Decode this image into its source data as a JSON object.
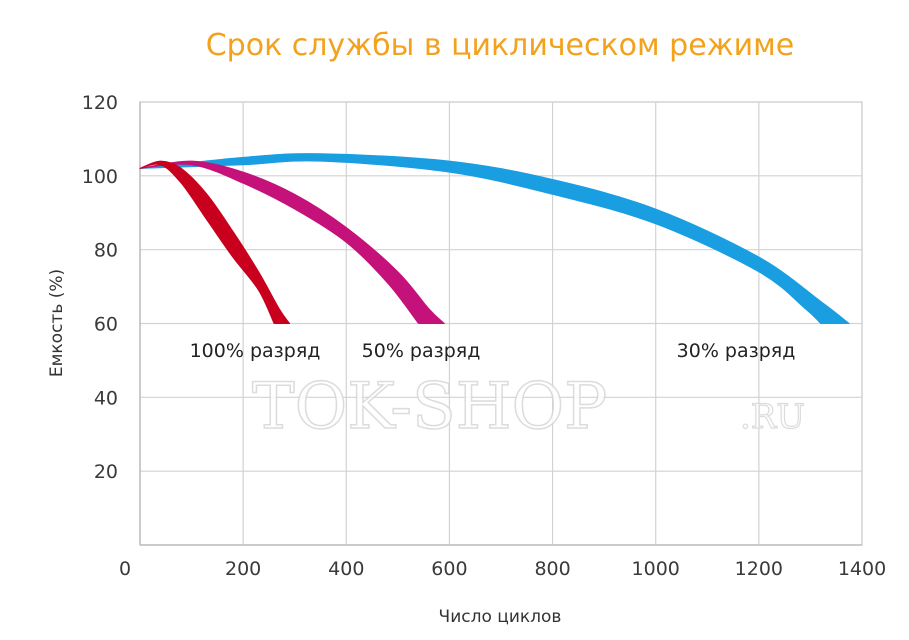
{
  "chart_data": {
    "type": "line",
    "title": "Срок службы в циклическом режиме",
    "xlabel": "Число циклов",
    "ylabel": "Емкость (%)",
    "xlim": [
      0,
      1400
    ],
    "ylim": [
      0,
      120
    ],
    "x_ticks": [
      "0",
      "200",
      "400",
      "600",
      "800",
      "1000",
      "1200",
      "1400"
    ],
    "y_ticks": [
      "20",
      "40",
      "60",
      "80",
      "100",
      "120"
    ],
    "grid": true,
    "series": [
      {
        "name": "100% разряд",
        "color": "#c8001e",
        "upper": [
          [
            0,
            102
          ],
          [
            40,
            104
          ],
          [
            80,
            102
          ],
          [
            130,
            95
          ],
          [
            180,
            85
          ],
          [
            230,
            74
          ],
          [
            270,
            64
          ],
          [
            290,
            60
          ]
        ],
        "lower": [
          [
            0,
            102
          ],
          [
            40,
            103
          ],
          [
            80,
            98
          ],
          [
            130,
            88
          ],
          [
            180,
            78
          ],
          [
            230,
            69
          ],
          [
            260,
            60
          ]
        ]
      },
      {
        "name": "50% разряд",
        "color": "#c4127a",
        "upper": [
          [
            0,
            102
          ],
          [
            100,
            104
          ],
          [
            200,
            101
          ],
          [
            300,
            95
          ],
          [
            400,
            86
          ],
          [
            500,
            74
          ],
          [
            560,
            64
          ],
          [
            590,
            60
          ]
        ],
        "lower": [
          [
            0,
            102
          ],
          [
            100,
            103
          ],
          [
            200,
            98
          ],
          [
            300,
            91
          ],
          [
            400,
            82
          ],
          [
            480,
            71
          ],
          [
            540,
            60
          ]
        ]
      },
      {
        "name": "30% разряд",
        "color": "#1a9ee2",
        "upper": [
          [
            0,
            102
          ],
          [
            200,
            105
          ],
          [
            350,
            106
          ],
          [
            600,
            104
          ],
          [
            800,
            99
          ],
          [
            1000,
            91
          ],
          [
            1200,
            78
          ],
          [
            1320,
            66
          ],
          [
            1375,
            60
          ]
        ],
        "lower": [
          [
            0,
            102
          ],
          [
            200,
            103
          ],
          [
            350,
            104
          ],
          [
            600,
            101
          ],
          [
            800,
            95
          ],
          [
            1000,
            87
          ],
          [
            1200,
            74
          ],
          [
            1290,
            64
          ],
          [
            1320,
            60
          ]
        ]
      }
    ]
  },
  "watermark": {
    "main": "TOK-SHOP",
    "suffix": ".RU"
  }
}
